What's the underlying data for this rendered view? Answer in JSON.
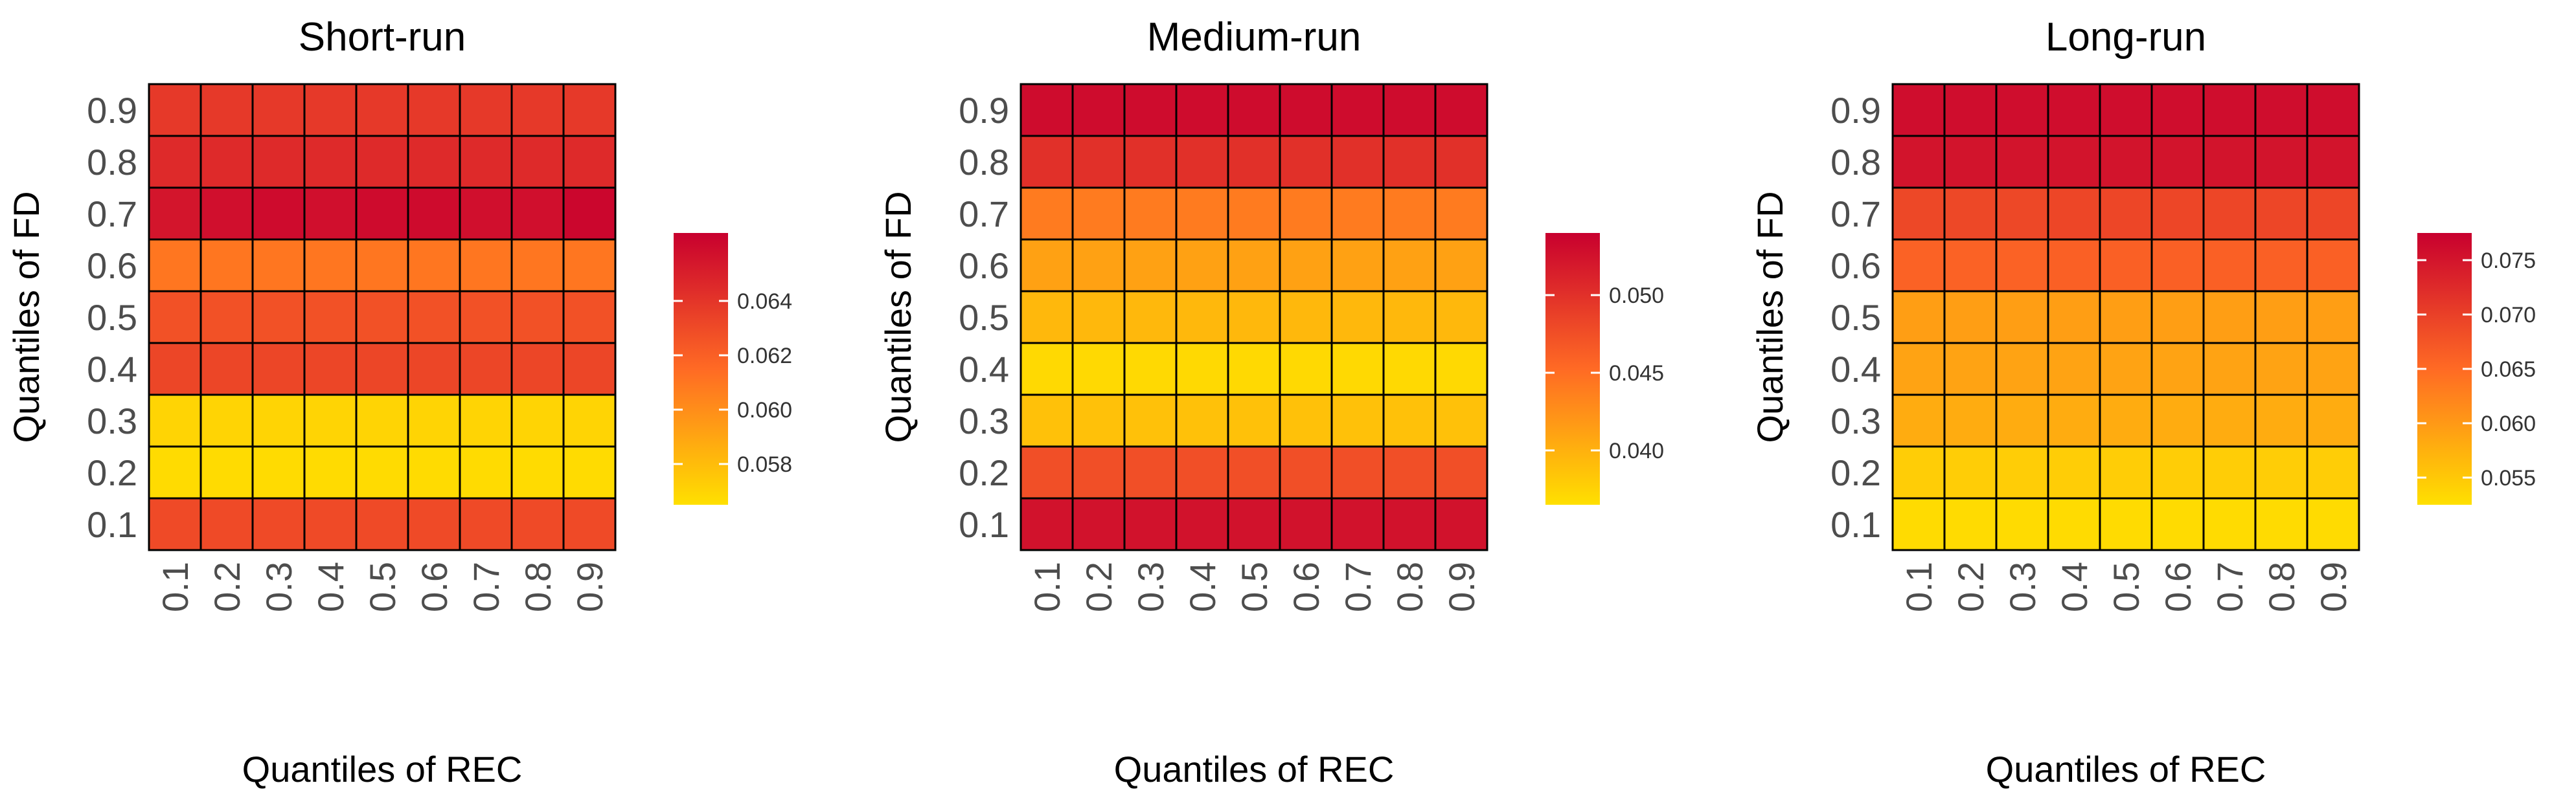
{
  "colors": {
    "low": "#FFE000",
    "mid": "#FF6A24",
    "high": "#C8002E",
    "tile_border": "#000000",
    "tick_text": "#4D4D4D"
  },
  "chart_data": [
    {
      "type": "heatmap",
      "title": "Short-run",
      "xlabel": "Quantiles of REC",
      "ylabel": "Quantiles of FD",
      "x": [
        "0.1",
        "0.2",
        "0.3",
        "0.4",
        "0.5",
        "0.6",
        "0.7",
        "0.8",
        "0.9"
      ],
      "y": [
        "0.1",
        "0.2",
        "0.3",
        "0.4",
        "0.5",
        "0.6",
        "0.7",
        "0.8",
        "0.9"
      ],
      "values": [
        [
          0.063,
          0.063,
          0.063,
          0.063,
          0.063,
          0.063,
          0.063,
          0.063,
          0.063
        ],
        [
          0.0567,
          0.0567,
          0.0567,
          0.0567,
          0.0567,
          0.0567,
          0.0567,
          0.0567,
          0.0567
        ],
        [
          0.057,
          0.057,
          0.057,
          0.057,
          0.057,
          0.057,
          0.057,
          0.057,
          0.057
        ],
        [
          0.0632,
          0.0632,
          0.0632,
          0.0632,
          0.0632,
          0.0632,
          0.0632,
          0.0632,
          0.0632
        ],
        [
          0.0627,
          0.0627,
          0.0627,
          0.0627,
          0.0627,
          0.0627,
          0.0627,
          0.0627,
          0.0627
        ],
        [
          0.061,
          0.061,
          0.061,
          0.061,
          0.061,
          0.061,
          0.061,
          0.061,
          0.061
        ],
        [
          0.0655,
          0.0658,
          0.066,
          0.0658,
          0.066,
          0.066,
          0.0658,
          0.0658,
          0.0662
        ],
        [
          0.0645,
          0.0645,
          0.0645,
          0.0645,
          0.0645,
          0.0645,
          0.0645,
          0.0645,
          0.0645
        ],
        [
          0.0638,
          0.0638,
          0.0638,
          0.0638,
          0.0638,
          0.0638,
          0.0638,
          0.0638,
          0.0638
        ]
      ],
      "legend": {
        "min": 0.0565,
        "max": 0.0665,
        "ticks": [
          0.058,
          0.06,
          0.062,
          0.064
        ],
        "tick_labels": [
          "0.058",
          "0.060",
          "0.062",
          "0.064"
        ]
      }
    },
    {
      "type": "heatmap",
      "title": "Medium-run",
      "xlabel": "Quantiles of REC",
      "ylabel": "Quantiles of FD",
      "x": [
        "0.1",
        "0.2",
        "0.3",
        "0.4",
        "0.5",
        "0.6",
        "0.7",
        "0.8",
        "0.9"
      ],
      "y": [
        "0.1",
        "0.2",
        "0.3",
        "0.4",
        "0.5",
        "0.6",
        "0.7",
        "0.8",
        "0.9"
      ],
      "values": [
        [
          0.0525,
          0.0525,
          0.0525,
          0.0525,
          0.0525,
          0.0525,
          0.0525,
          0.0525,
          0.0525
        ],
        [
          0.0475,
          0.0475,
          0.0475,
          0.0475,
          0.0475,
          0.0475,
          0.0475,
          0.0475,
          0.0475
        ],
        [
          0.0388,
          0.0388,
          0.0388,
          0.0388,
          0.0388,
          0.0388,
          0.0388,
          0.0388,
          0.0388
        ],
        [
          0.037,
          0.037,
          0.037,
          0.037,
          0.037,
          0.037,
          0.037,
          0.037,
          0.037
        ],
        [
          0.0395,
          0.0395,
          0.0395,
          0.0395,
          0.0395,
          0.0395,
          0.0395,
          0.0395,
          0.0395
        ],
        [
          0.0412,
          0.0412,
          0.0412,
          0.0412,
          0.0412,
          0.0412,
          0.0412,
          0.0412,
          0.0412
        ],
        [
          0.044,
          0.044,
          0.044,
          0.044,
          0.044,
          0.044,
          0.044,
          0.044,
          0.044
        ],
        [
          0.05,
          0.05,
          0.05,
          0.05,
          0.05,
          0.05,
          0.05,
          0.05,
          0.05
        ],
        [
          0.053,
          0.053,
          0.053,
          0.053,
          0.053,
          0.053,
          0.053,
          0.053,
          0.053
        ]
      ],
      "legend": {
        "min": 0.0365,
        "max": 0.054,
        "ticks": [
          0.04,
          0.045,
          0.05
        ],
        "tick_labels": [
          "0.040",
          "0.045",
          "0.050"
        ]
      }
    },
    {
      "type": "heatmap",
      "title": "Long-run",
      "xlabel": "Quantiles of REC",
      "ylabel": "Quantiles of FD",
      "x": [
        "0.1",
        "0.2",
        "0.3",
        "0.4",
        "0.5",
        "0.6",
        "0.7",
        "0.8",
        "0.9"
      ],
      "y": [
        "0.1",
        "0.2",
        "0.3",
        "0.4",
        "0.5",
        "0.6",
        "0.7",
        "0.8",
        "0.9"
      ],
      "values": [
        [
          0.053,
          0.053,
          0.053,
          0.053,
          0.053,
          0.053,
          0.053,
          0.053,
          0.053
        ],
        [
          0.0545,
          0.0545,
          0.0545,
          0.0545,
          0.0545,
          0.0545,
          0.0545,
          0.0545,
          0.0545
        ],
        [
          0.058,
          0.058,
          0.058,
          0.058,
          0.058,
          0.058,
          0.058,
          0.058,
          0.058
        ],
        [
          0.059,
          0.059,
          0.059,
          0.059,
          0.059,
          0.059,
          0.059,
          0.059,
          0.059
        ],
        [
          0.0595,
          0.0595,
          0.0595,
          0.0595,
          0.0595,
          0.0595,
          0.0595,
          0.0595,
          0.0595
        ],
        [
          0.066,
          0.066,
          0.066,
          0.0662,
          0.0662,
          0.0662,
          0.0662,
          0.0662,
          0.0662
        ],
        [
          0.069,
          0.069,
          0.069,
          0.0692,
          0.0692,
          0.0692,
          0.0692,
          0.0692,
          0.0692
        ],
        [
          0.0752,
          0.0752,
          0.0752,
          0.0752,
          0.0752,
          0.0752,
          0.0752,
          0.0752,
          0.0752
        ],
        [
          0.076,
          0.076,
          0.076,
          0.076,
          0.076,
          0.076,
          0.076,
          0.076,
          0.076
        ]
      ],
      "legend": {
        "min": 0.0525,
        "max": 0.0775,
        "ticks": [
          0.055,
          0.06,
          0.065,
          0.07,
          0.075
        ],
        "tick_labels": [
          "0.055",
          "0.060",
          "0.065",
          "0.070",
          "0.075"
        ]
      }
    }
  ]
}
